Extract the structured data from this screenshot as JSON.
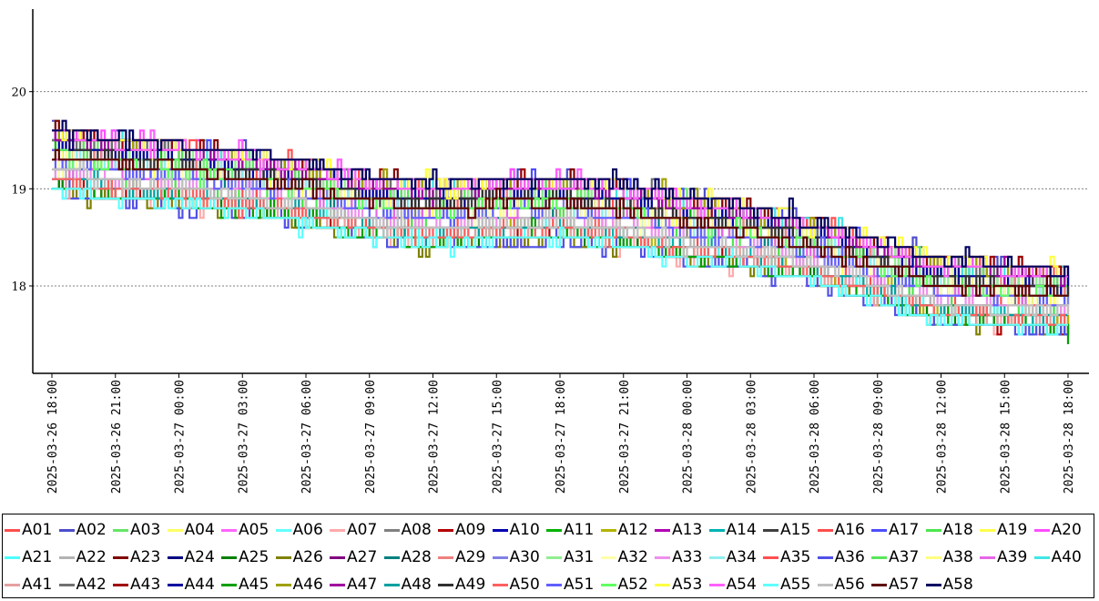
{
  "chart_data": {
    "type": "line",
    "step": true,
    "ylim": [
      17.1,
      20.85
    ],
    "yticks": [
      18,
      19,
      20
    ],
    "ytick_labels": [
      "18",
      "19",
      "20"
    ],
    "grid": "horizontal-dotted",
    "x_start": "2025-03-26 18:00",
    "x_end": "2025-03-28 18:00",
    "xtick_labels": [
      "2025-03-26 18:00",
      "2025-03-26 21:00",
      "2025-03-27 00:00",
      "2025-03-27 03:00",
      "2025-03-27 06:00",
      "2025-03-27 09:00",
      "2025-03-27 12:00",
      "2025-03-27 15:00",
      "2025-03-27 18:00",
      "2025-03-27 21:00",
      "2025-03-28 00:00",
      "2025-03-28 03:00",
      "2025-03-28 06:00",
      "2025-03-28 09:00",
      "2025-03-28 12:00",
      "2025-03-28 15:00",
      "2025-03-28 18:00"
    ],
    "trend": {
      "x": [
        "2025-03-26 18:00",
        "2025-03-26 21:00",
        "2025-03-27 00:00",
        "2025-03-27 03:00",
        "2025-03-27 06:00",
        "2025-03-27 09:00",
        "2025-03-27 12:00",
        "2025-03-27 15:00",
        "2025-03-27 18:00",
        "2025-03-27 21:00",
        "2025-03-28 00:00",
        "2025-03-28 03:00",
        "2025-03-28 06:00",
        "2025-03-28 09:00",
        "2025-03-28 12:00",
        "2025-03-28 15:00",
        "2025-03-28 18:00"
      ],
      "y": [
        19.3,
        19.2,
        19.15,
        19.05,
        18.95,
        18.8,
        18.72,
        18.78,
        18.8,
        18.72,
        18.6,
        18.5,
        18.35,
        18.15,
        17.95,
        17.9,
        17.85
      ]
    },
    "spread": 0.32,
    "series": [
      {
        "name": "A01",
        "color": "#ff4d4d"
      },
      {
        "name": "A02",
        "color": "#4d4dcc"
      },
      {
        "name": "A03",
        "color": "#66e666"
      },
      {
        "name": "A04",
        "color": "#ffff66"
      },
      {
        "name": "A05",
        "color": "#ff66ff"
      },
      {
        "name": "A06",
        "color": "#66ffff"
      },
      {
        "name": "A07",
        "color": "#ffaaaa"
      },
      {
        "name": "A08",
        "color": "#808080"
      },
      {
        "name": "A09",
        "color": "#b30000"
      },
      {
        "name": "A10",
        "color": "#0000b3"
      },
      {
        "name": "A11",
        "color": "#00b300"
      },
      {
        "name": "A12",
        "color": "#b3b300"
      },
      {
        "name": "A13",
        "color": "#b300b3"
      },
      {
        "name": "A14",
        "color": "#00b3b3"
      },
      {
        "name": "A15",
        "color": "#404040"
      },
      {
        "name": "A16",
        "color": "#ff4d4d"
      },
      {
        "name": "A17",
        "color": "#4d4dff"
      },
      {
        "name": "A18",
        "color": "#4de64d"
      },
      {
        "name": "A19",
        "color": "#ffff4d"
      },
      {
        "name": "A20",
        "color": "#ff4dff"
      },
      {
        "name": "A21",
        "color": "#4dffff"
      },
      {
        "name": "A22",
        "color": "#b3b3b3"
      },
      {
        "name": "A23",
        "color": "#800000"
      },
      {
        "name": "A24",
        "color": "#000080"
      },
      {
        "name": "A25",
        "color": "#008000"
      },
      {
        "name": "A26",
        "color": "#808000"
      },
      {
        "name": "A27",
        "color": "#800080"
      },
      {
        "name": "A28",
        "color": "#008080"
      },
      {
        "name": "A29",
        "color": "#f08080"
      },
      {
        "name": "A30",
        "color": "#8080e6"
      },
      {
        "name": "A31",
        "color": "#90ee90"
      },
      {
        "name": "A32",
        "color": "#ffffaa"
      },
      {
        "name": "A33",
        "color": "#ee90ee"
      },
      {
        "name": "A34",
        "color": "#90eeee"
      },
      {
        "name": "A35",
        "color": "#ff5050"
      },
      {
        "name": "A36",
        "color": "#5050e6"
      },
      {
        "name": "A37",
        "color": "#5ae65a"
      },
      {
        "name": "A38",
        "color": "#ffff80"
      },
      {
        "name": "A39",
        "color": "#e666e6"
      },
      {
        "name": "A40",
        "color": "#40e6e6"
      },
      {
        "name": "A41",
        "color": "#e6a0a0"
      },
      {
        "name": "A42",
        "color": "#707070"
      },
      {
        "name": "A43",
        "color": "#a00000"
      },
      {
        "name": "A44",
        "color": "#0000a0"
      },
      {
        "name": "A45",
        "color": "#00a000"
      },
      {
        "name": "A46",
        "color": "#a0a000"
      },
      {
        "name": "A47",
        "color": "#a000a0"
      },
      {
        "name": "A48",
        "color": "#00a0a0"
      },
      {
        "name": "A49",
        "color": "#303030"
      },
      {
        "name": "A50",
        "color": "#ff6060"
      },
      {
        "name": "A51",
        "color": "#6060ff"
      },
      {
        "name": "A52",
        "color": "#60ff60"
      },
      {
        "name": "A53",
        "color": "#ffff40"
      },
      {
        "name": "A54",
        "color": "#ff60ff"
      },
      {
        "name": "A55",
        "color": "#60ffff"
      },
      {
        "name": "A56",
        "color": "#c0c0c0"
      },
      {
        "name": "A57",
        "color": "#600000"
      },
      {
        "name": "A58",
        "color": "#000060"
      }
    ]
  }
}
